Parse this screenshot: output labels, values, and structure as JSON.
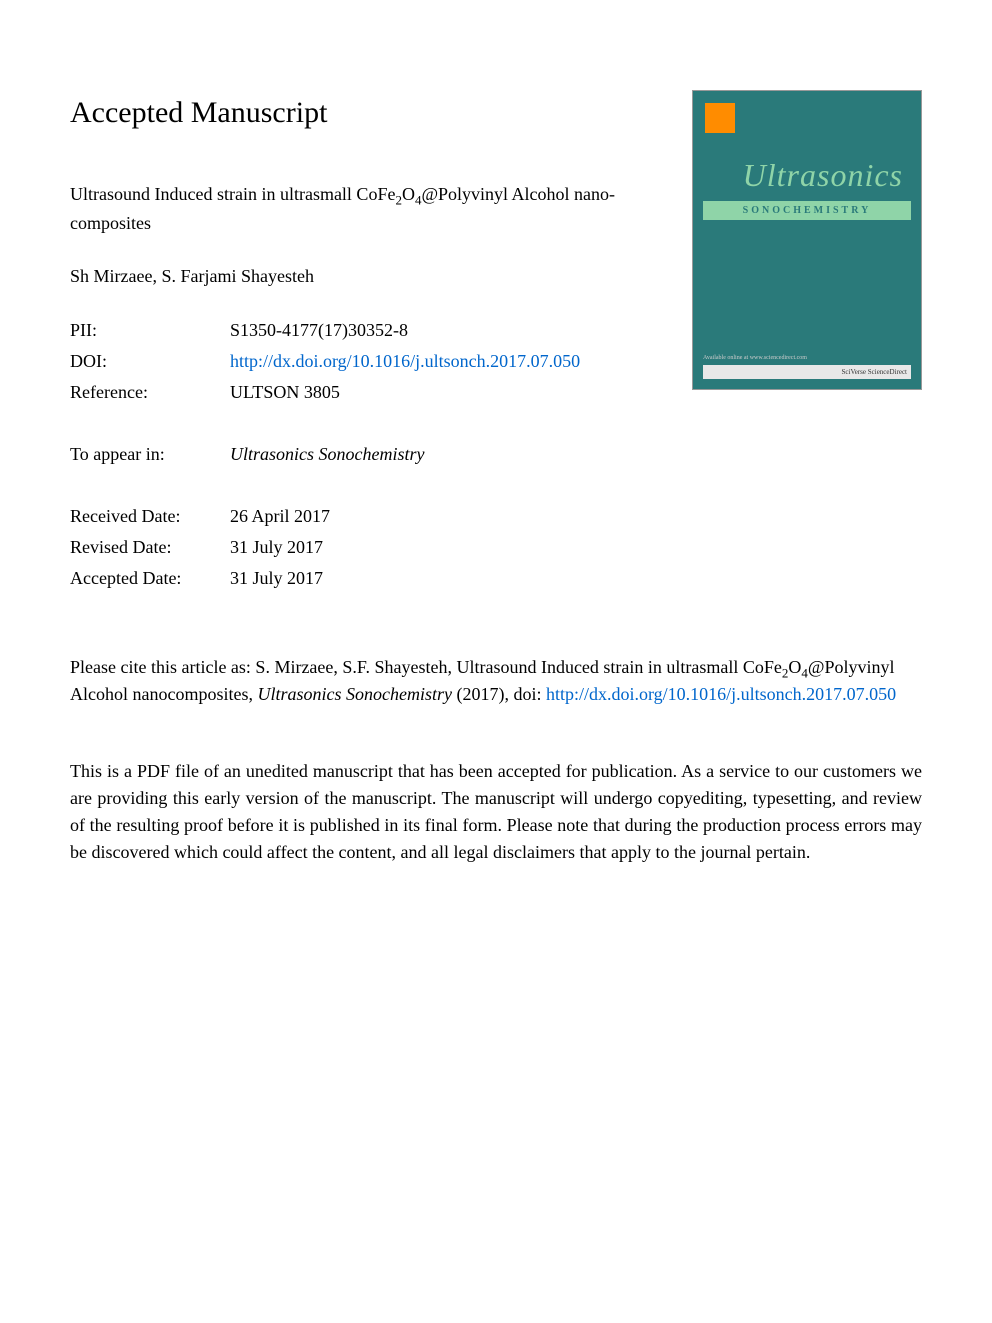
{
  "header": {
    "manuscript_title": "Accepted Manuscript"
  },
  "article": {
    "title_part1": "Ultrasound Induced strain in ultrasmall CoFe",
    "title_sub1": "2",
    "title_mid": "O",
    "title_sub2": "4",
    "title_part2": "@Polyvinyl Alcohol nano-composites",
    "authors": "Sh Mirzaee, S. Farjami Shayesteh"
  },
  "metadata": {
    "pii_label": "PII:",
    "pii_value": "S1350-4177(17)30352-8",
    "doi_label": "DOI:",
    "doi_value": "http://dx.doi.org/10.1016/j.ultsonch.2017.07.050",
    "reference_label": "Reference:",
    "reference_value": "ULTSON 3805",
    "appear_label": "To appear in:",
    "appear_value": "Ultrasonics Sonochemistry",
    "received_label": "Received Date:",
    "received_value": "26 April 2017",
    "revised_label": "Revised Date:",
    "revised_value": "31 July 2017",
    "accepted_label": "Accepted Date:",
    "accepted_value": "31 July 2017"
  },
  "cover": {
    "journal_title": "Ultrasonics",
    "journal_subtitle": "SONOCHEMISTRY",
    "footer_left": "Available online at www.sciencedirect.com",
    "footer_right": "SciVerse ScienceDirect"
  },
  "citation": {
    "prefix": "Please cite this article as: S. Mirzaee, S.F. Shayesteh, Ultrasound Induced strain in ultrasmall CoFe",
    "sub1": "2",
    "mid": "O",
    "sub2": "4",
    "part2": "@Polyvinyl Alcohol nanocomposites, ",
    "journal": "Ultrasonics Sonochemistry",
    "year": " (2017), doi: ",
    "doi_link": "http://dx.doi.org/10.1016/j.ultsonch.2017.07.050"
  },
  "disclaimer": {
    "text": "This is a PDF file of an unedited manuscript that has been accepted for publication. As a service to our customers we are providing this early version of the manuscript. The manuscript will undergo copyediting, typesetting, and review of the resulting proof before it is published in its final form. Please note that during the production process errors may be discovered which could affect the content, and all legal disclaimers that apply to the journal pertain."
  },
  "colors": {
    "link_color": "#0066cc",
    "cover_bg": "#2a7a7a",
    "cover_accent": "#8fd4a8",
    "text_color": "#000000"
  }
}
